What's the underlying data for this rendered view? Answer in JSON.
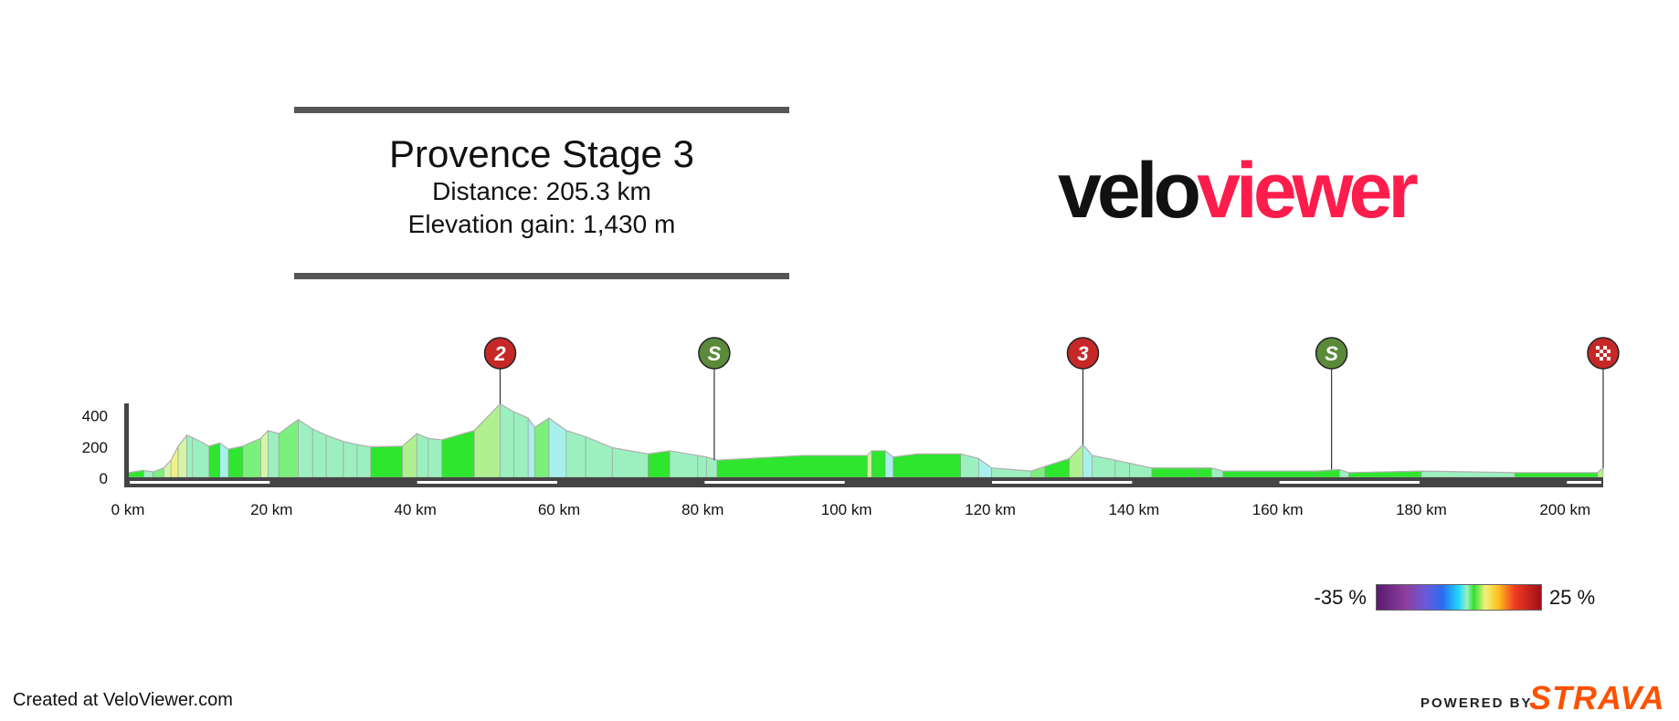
{
  "header": {
    "title": "Provence Stage 3",
    "distance": "Distance: 205.3 km",
    "elevation_gain": "Elevation gain: 1,430 m"
  },
  "logo": {
    "part1": "velo",
    "part2": "viewer"
  },
  "legend": {
    "min_label": "-35 %",
    "max_label": "25 %"
  },
  "footer": {
    "created": "Created at VeloViewer.com",
    "powered": "POWERED BY",
    "strava": "STRAVA"
  },
  "colors": {
    "climb_marker": "#c62828",
    "sprint_marker": "#5a8a3a",
    "finish_marker": "#c62828",
    "axis": "#444444",
    "brand": "#fc1d4c",
    "strava": "#fc5200"
  },
  "chart_data": {
    "type": "area",
    "title": "",
    "xlabel": "",
    "ylabel": "",
    "xlim": [
      0,
      205.3
    ],
    "ylim": [
      -50,
      460
    ],
    "x_ticks": [
      0,
      20,
      40,
      60,
      80,
      100,
      120,
      140,
      160,
      180,
      200
    ],
    "x_tick_labels": [
      "0 km",
      "20 km",
      "40 km",
      "60 km",
      "80 km",
      "100 km",
      "120 km",
      "140 km",
      "160 km",
      "180 km",
      "200 km"
    ],
    "y_ticks": [
      0,
      200,
      400
    ],
    "y_tick_labels": [
      "0",
      "200",
      "400"
    ],
    "profile": [
      [
        0,
        30
      ],
      [
        2.2,
        45
      ],
      [
        3.5,
        35
      ],
      [
        5,
        60
      ],
      [
        6,
        110
      ],
      [
        7,
        200
      ],
      [
        8.2,
        270
      ],
      [
        9,
        255
      ],
      [
        11.3,
        200
      ],
      [
        12.8,
        220
      ],
      [
        14,
        180
      ],
      [
        16,
        200
      ],
      [
        18.5,
        250
      ],
      [
        19.5,
        300
      ],
      [
        21,
        280
      ],
      [
        23.7,
        370
      ],
      [
        25.7,
        310
      ],
      [
        27.6,
        270
      ],
      [
        30,
        230
      ],
      [
        31.9,
        210
      ],
      [
        33.8,
        195
      ],
      [
        38.2,
        200
      ],
      [
        40.2,
        280
      ],
      [
        41.8,
        250
      ],
      [
        43.7,
        240
      ],
      [
        48.2,
        300
      ],
      [
        51.8,
        470
      ],
      [
        53.7,
        420
      ],
      [
        55.7,
        380
      ],
      [
        56.6,
        320
      ],
      [
        58.6,
        380
      ],
      [
        61,
        300
      ],
      [
        63.7,
        260
      ],
      [
        67.4,
        190
      ],
      [
        72.4,
        150
      ],
      [
        75.4,
        170
      ],
      [
        79.3,
        140
      ],
      [
        80.5,
        130
      ],
      [
        82,
        110
      ],
      [
        94,
        140
      ],
      [
        102.9,
        140
      ],
      [
        103.5,
        170
      ],
      [
        105.4,
        170
      ],
      [
        106.5,
        130
      ],
      [
        109.9,
        150
      ],
      [
        115.9,
        150
      ],
      [
        118.4,
        120
      ],
      [
        120.2,
        60
      ],
      [
        125.7,
        40
      ],
      [
        127.6,
        70
      ],
      [
        131,
        120
      ],
      [
        132.9,
        210
      ],
      [
        134.2,
        140
      ],
      [
        137.4,
        110
      ],
      [
        139.4,
        90
      ],
      [
        142.5,
        60
      ],
      [
        149,
        60
      ],
      [
        150.8,
        60
      ],
      [
        152.4,
        40
      ],
      [
        165.5,
        40
      ],
      [
        168.6,
        50
      ],
      [
        169.9,
        30
      ],
      [
        180,
        40
      ],
      [
        193,
        30
      ],
      [
        204.5,
        30
      ],
      [
        205.3,
        60
      ]
    ],
    "markers": [
      {
        "km": 51.8,
        "label": "2",
        "kind": "climb"
      },
      {
        "km": 81.6,
        "label": "S",
        "kind": "sprint"
      },
      {
        "km": 132.9,
        "label": "3",
        "kind": "climb"
      },
      {
        "km": 167.5,
        "label": "S",
        "kind": "sprint"
      },
      {
        "km": 205.3,
        "label": "",
        "kind": "finish"
      }
    ],
    "gradient_scale_percent": [
      -35,
      25
    ],
    "grid": false
  }
}
